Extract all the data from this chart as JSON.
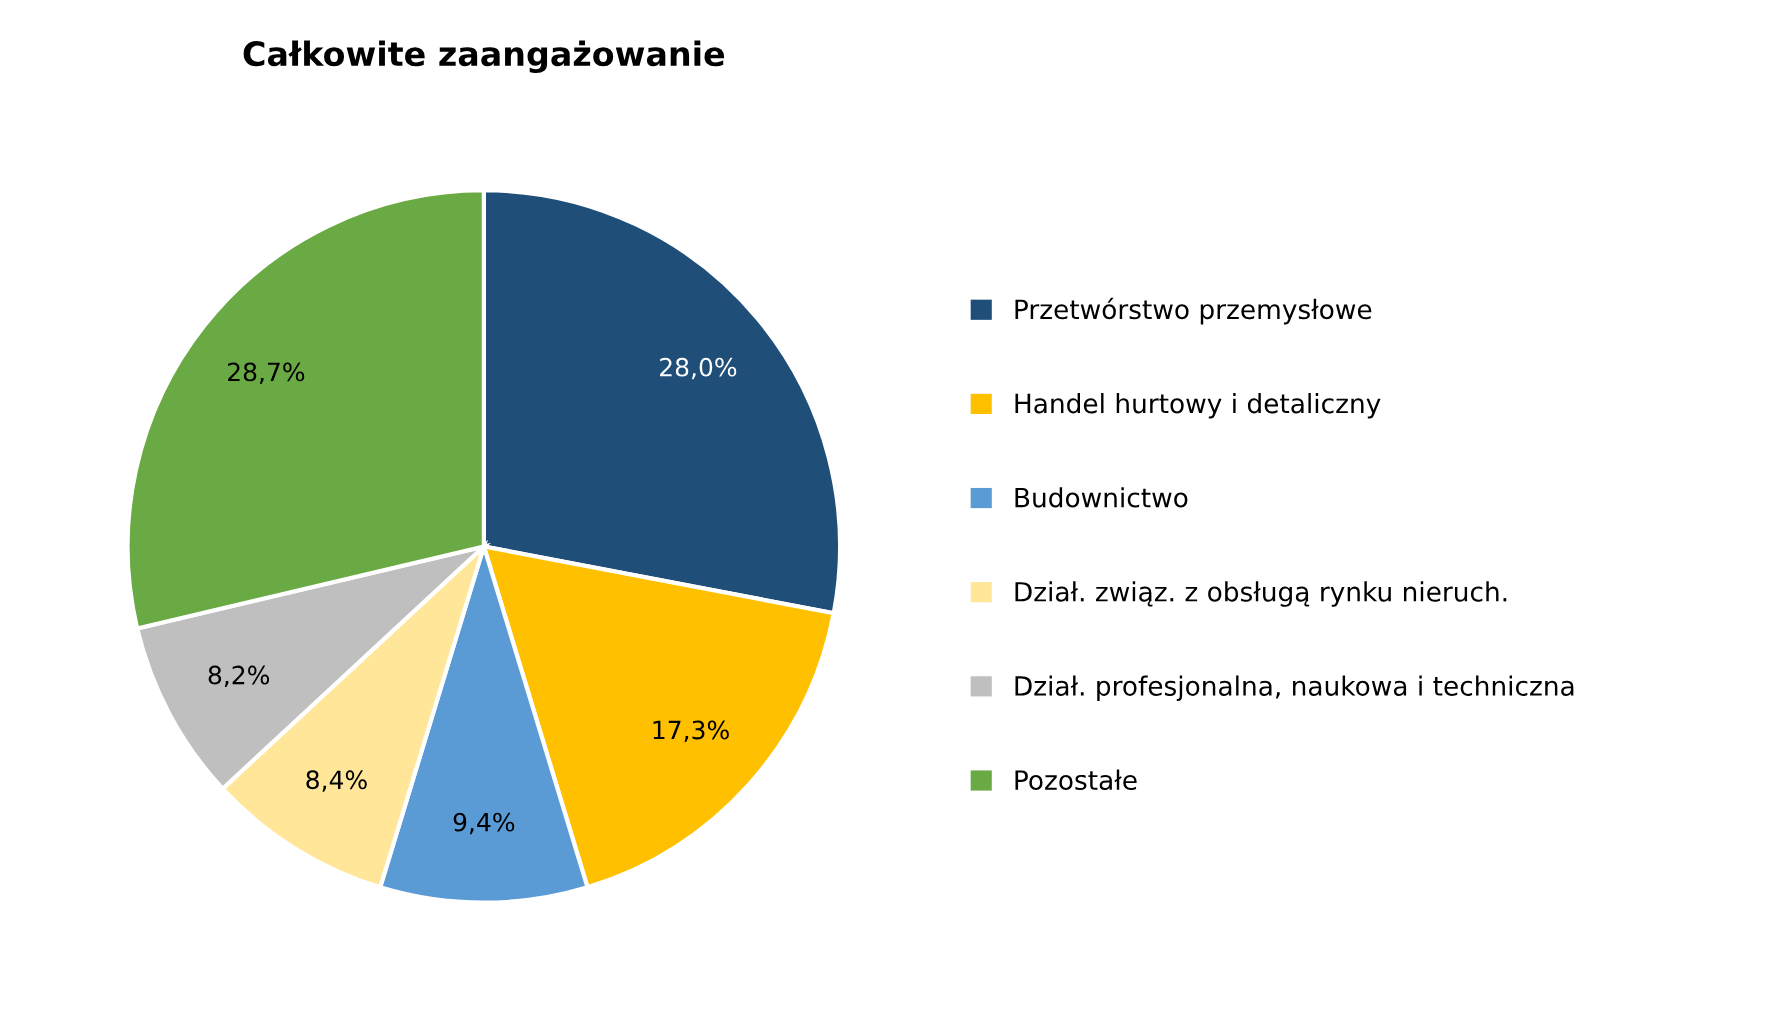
{
  "chart_data": {
    "type": "pie",
    "title": "Całkowite zaangażowanie",
    "categories": [
      "Przetwórstwo przemysłowe",
      "Handel hurtowy i detaliczny",
      "Budownictwo",
      "Dział. związ. z obsługą rynku nieruch.",
      "Dział. profesjonalna, naukowa i techniczna",
      "Pozostałe"
    ],
    "values": [
      28.0,
      17.3,
      9.4,
      8.4,
      8.2,
      28.7
    ],
    "colors": [
      "#1f4e79",
      "#ffc000",
      "#5b9bd5",
      "#ffe699",
      "#bfbfbf",
      "#6aaa45"
    ],
    "value_labels": [
      "28,0%",
      "17,3%",
      "9,4%",
      "8,4%",
      "8,2%",
      "28,7%"
    ],
    "legend": "right"
  }
}
